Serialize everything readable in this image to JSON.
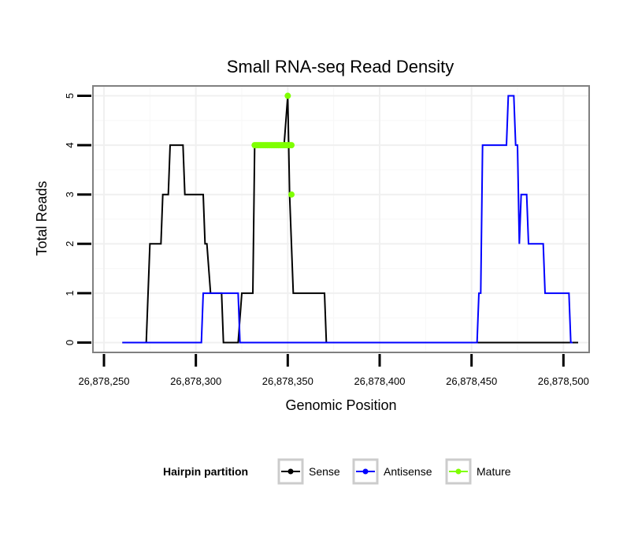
{
  "chart_data": {
    "type": "line",
    "title": "Small RNA-seq Read Density",
    "xlabel": "Genomic Position",
    "ylabel": "Total Reads",
    "xlim": [
      26878244,
      26878514
    ],
    "ylim": [
      -0.2,
      5.2
    ],
    "xticks": [
      26878250,
      26878300,
      26878350,
      26878400,
      26878450,
      26878500
    ],
    "xtick_labels": [
      "26,878,250",
      "26,878,300",
      "26,878,350",
      "26,878,400",
      "26,878,450",
      "26,878,500"
    ],
    "yticks": [
      0,
      1,
      2,
      3,
      4,
      5
    ],
    "ytick_labels": [
      "0",
      "1",
      "2",
      "3",
      "4",
      "5"
    ],
    "grid": true,
    "legend": {
      "title": "Hairpin partition",
      "position": "bottom",
      "entries": [
        "Sense",
        "Antisense",
        "Mature"
      ]
    },
    "series": [
      {
        "name": "Sense",
        "color": "#000000",
        "style": "line",
        "points": [
          [
            26878260,
            0
          ],
          [
            26878273,
            0
          ],
          [
            26878275,
            2
          ],
          [
            26878281,
            2
          ],
          [
            26878282,
            3
          ],
          [
            26878285,
            3
          ],
          [
            26878286,
            4
          ],
          [
            26878289,
            4
          ],
          [
            26878290,
            4
          ],
          [
            26878293,
            4
          ],
          [
            26878294,
            3
          ],
          [
            26878297,
            3
          ],
          [
            26878301,
            3
          ],
          [
            26878304,
            3
          ],
          [
            26878305,
            2
          ],
          [
            26878306,
            2
          ],
          [
            26878308,
            1
          ],
          [
            26878312,
            1
          ],
          [
            26878314,
            1
          ],
          [
            26878315,
            0
          ],
          [
            26878323,
            0
          ],
          [
            26878325,
            1
          ],
          [
            26878331,
            1
          ],
          [
            26878332,
            4
          ],
          [
            26878336,
            4
          ],
          [
            26878340,
            4
          ],
          [
            26878345,
            4
          ],
          [
            26878348,
            4
          ],
          [
            26878350,
            5
          ],
          [
            26878351,
            3
          ],
          [
            26878352,
            2
          ],
          [
            26878353,
            1
          ],
          [
            26878360,
            1
          ],
          [
            26878370,
            1
          ],
          [
            26878371,
            0
          ],
          [
            26878508,
            0
          ]
        ]
      },
      {
        "name": "Antisense",
        "color": "#0000ff",
        "style": "line",
        "points": [
          [
            26878260,
            0
          ],
          [
            26878303,
            0
          ],
          [
            26878304,
            1
          ],
          [
            26878312,
            1
          ],
          [
            26878315,
            1
          ],
          [
            26878323,
            1
          ],
          [
            26878324,
            0
          ],
          [
            26878453,
            0
          ],
          [
            26878454,
            1
          ],
          [
            26878455,
            1
          ],
          [
            26878456,
            4
          ],
          [
            26878462,
            4
          ],
          [
            26878469,
            4
          ],
          [
            26878470,
            5
          ],
          [
            26878472,
            5
          ],
          [
            26878473,
            5
          ],
          [
            26878474,
            4
          ],
          [
            26878475,
            4
          ],
          [
            26878476,
            2
          ],
          [
            26878477,
            3
          ],
          [
            26878480,
            3
          ],
          [
            26878481,
            2
          ],
          [
            26878484,
            2
          ],
          [
            26878489,
            2
          ],
          [
            26878490,
            1
          ],
          [
            26878495,
            1
          ],
          [
            26878503,
            1
          ],
          [
            26878504,
            0
          ],
          [
            26878505,
            0
          ]
        ]
      },
      {
        "name": "Mature",
        "color": "#7fff00",
        "style": "points",
        "points": [
          [
            26878332,
            4
          ],
          [
            26878333,
            4
          ],
          [
            26878334,
            4
          ],
          [
            26878335,
            4
          ],
          [
            26878336,
            4
          ],
          [
            26878337,
            4
          ],
          [
            26878338,
            4
          ],
          [
            26878339,
            4
          ],
          [
            26878340,
            4
          ],
          [
            26878341,
            4
          ],
          [
            26878342,
            4
          ],
          [
            26878343,
            4
          ],
          [
            26878344,
            4
          ],
          [
            26878345,
            4
          ],
          [
            26878346,
            4
          ],
          [
            26878347,
            4
          ],
          [
            26878348,
            4
          ],
          [
            26878349,
            4
          ],
          [
            26878350,
            4
          ],
          [
            26878351,
            4
          ],
          [
            26878352,
            4
          ],
          [
            26878350,
            5
          ],
          [
            26878352,
            3
          ]
        ]
      }
    ]
  }
}
